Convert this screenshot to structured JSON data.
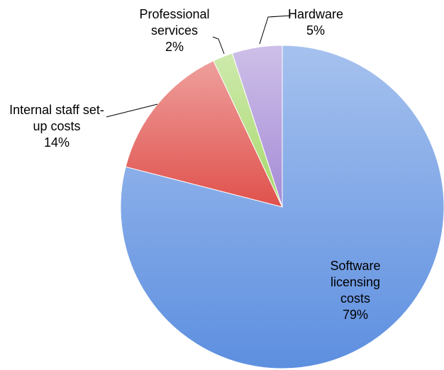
{
  "chart_data": {
    "type": "pie",
    "categories": [
      "Software licensing costs",
      "Internal staff set-up costs",
      "Professional services",
      "Hardware"
    ],
    "values": [
      79,
      14,
      2,
      5
    ],
    "value_labels": [
      "79%",
      "14%",
      "2%",
      "5%"
    ],
    "colors": [
      "#5d8fe0",
      "#e0514c",
      "#a6d86a",
      "#a58bd6"
    ]
  }
}
